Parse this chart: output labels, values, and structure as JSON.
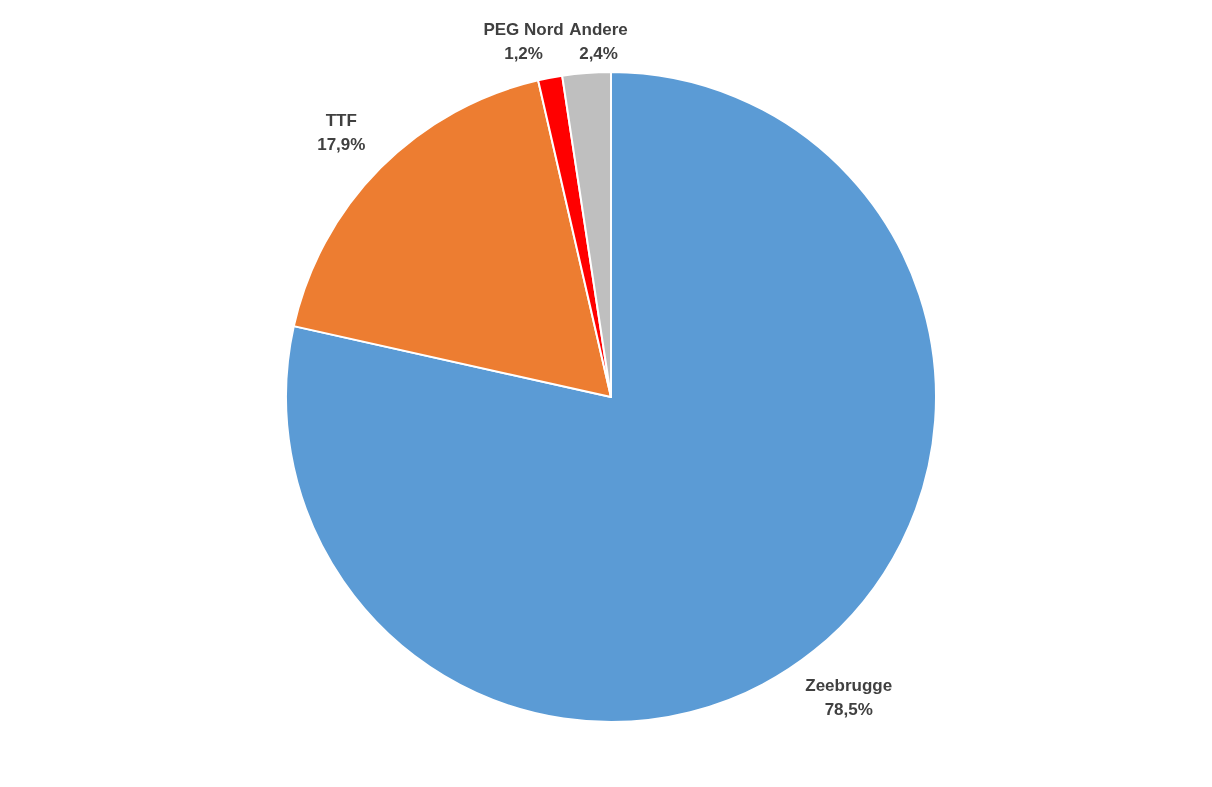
{
  "chart_data": {
    "type": "pie",
    "categories": [
      "Zeebrugge",
      "TTF",
      "PEG Nord",
      "Andere"
    ],
    "values": [
      78.5,
      17.9,
      1.2,
      2.4
    ],
    "colors": [
      "#5b9bd5",
      "#ed7d31",
      "#ff0000",
      "#bfbfbf"
    ],
    "value_labels": [
      "78,5%",
      "17,9%",
      "1,2%",
      "2,4%"
    ]
  }
}
